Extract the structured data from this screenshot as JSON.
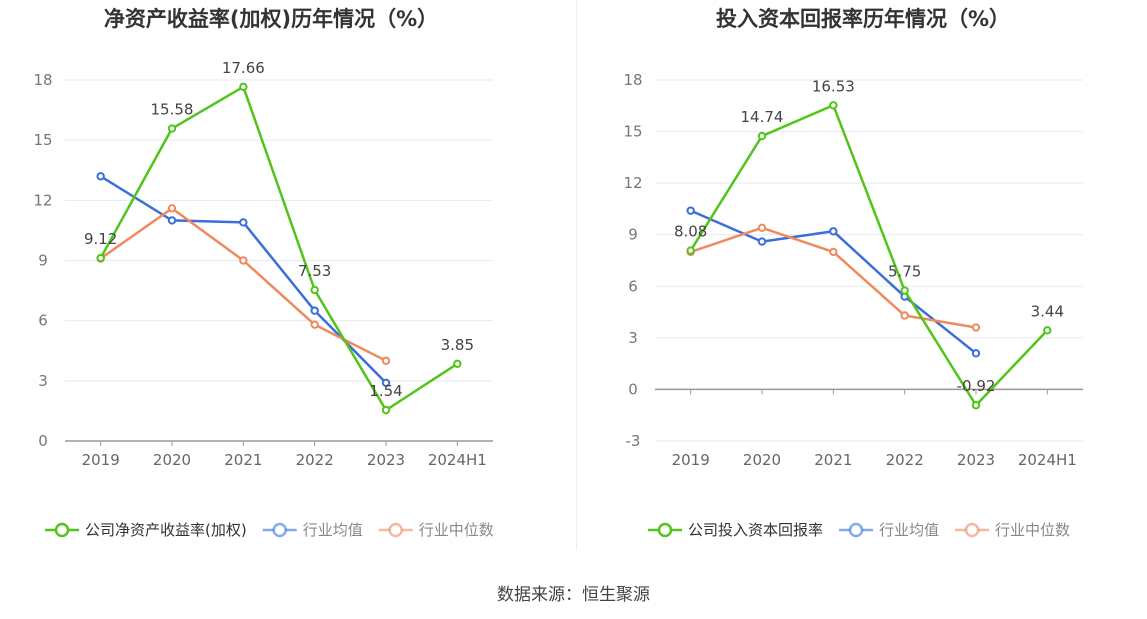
{
  "footer": {
    "source": "数据来源：恒生聚源"
  },
  "chart_data": [
    {
      "type": "line",
      "title": "净资产收益率(加权)历年情况（%）",
      "categories": [
        "2019",
        "2020",
        "2021",
        "2022",
        "2023",
        "2024H1"
      ],
      "ylim": [
        0,
        18
      ],
      "yticks": [
        0,
        3,
        6,
        9,
        12,
        15,
        18
      ],
      "grid": true,
      "legend_position": "bottom",
      "series": [
        {
          "name": "公司净资产收益率(加权)",
          "color": "#52c41a",
          "values": [
            9.12,
            15.58,
            17.66,
            7.53,
            1.54,
            3.85
          ],
          "labels": true
        },
        {
          "name": "行业均值",
          "color": "#3b6fd8",
          "values": [
            13.2,
            11.0,
            10.9,
            6.5,
            2.9,
            null
          ],
          "labels": false
        },
        {
          "name": "行业中位数",
          "color": "#f0895e",
          "values": [
            9.1,
            11.6,
            9.0,
            5.8,
            4.0,
            null
          ],
          "labels": false
        }
      ]
    },
    {
      "type": "line",
      "title": "投入资本回报率历年情况（%）",
      "categories": [
        "2019",
        "2020",
        "2021",
        "2022",
        "2023",
        "2024H1"
      ],
      "ylim": [
        -3,
        18
      ],
      "yticks": [
        -3,
        0,
        3,
        6,
        9,
        12,
        15,
        18
      ],
      "grid": true,
      "legend_position": "bottom",
      "series": [
        {
          "name": "公司投入资本回报率",
          "color": "#52c41a",
          "values": [
            8.08,
            14.74,
            16.53,
            5.75,
            -0.92,
            3.44
          ],
          "labels": true
        },
        {
          "name": "行业均值",
          "color": "#3b6fd8",
          "values": [
            10.4,
            8.6,
            9.2,
            5.4,
            2.1,
            null
          ],
          "labels": false
        },
        {
          "name": "行业中位数",
          "color": "#f0895e",
          "values": [
            8.0,
            9.4,
            8.0,
            4.3,
            3.6,
            null
          ],
          "labels": false
        }
      ]
    }
  ]
}
